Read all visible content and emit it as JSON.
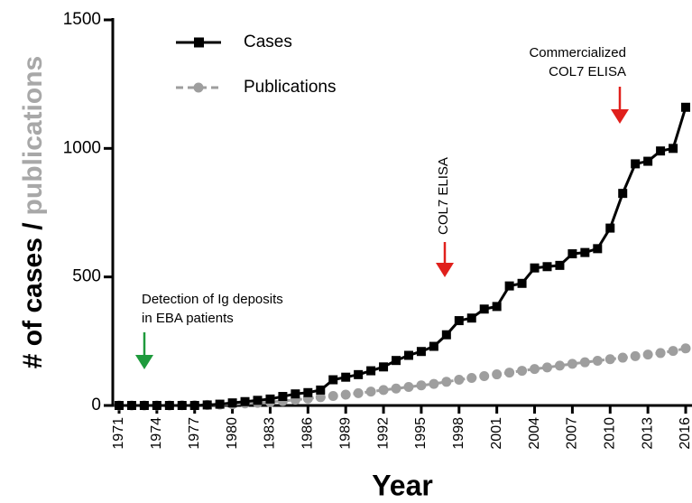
{
  "chart_data": {
    "type": "line",
    "x_label": "Year",
    "y_label": {
      "cases": "# of cases /",
      "publications": "publications"
    },
    "x": [
      1971,
      1972,
      1973,
      1974,
      1975,
      1976,
      1977,
      1978,
      1979,
      1980,
      1981,
      1982,
      1983,
      1984,
      1985,
      1986,
      1987,
      1988,
      1989,
      1990,
      1991,
      1992,
      1993,
      1994,
      1995,
      1996,
      1997,
      1998,
      1999,
      2000,
      2001,
      2002,
      2003,
      2004,
      2005,
      2006,
      2007,
      2008,
      2009,
      2010,
      2011,
      2012,
      2013,
      2014,
      2015,
      2016
    ],
    "series": [
      {
        "name": "Cases",
        "color": "#000000",
        "marker": "square",
        "values": [
          0,
          0,
          0,
          0,
          0,
          0,
          0,
          2,
          5,
          10,
          15,
          20,
          25,
          35,
          45,
          50,
          60,
          100,
          110,
          120,
          135,
          150,
          175,
          195,
          210,
          230,
          275,
          330,
          340,
          375,
          385,
          465,
          475,
          535,
          540,
          545,
          590,
          595,
          610,
          690,
          825,
          940,
          950,
          990,
          1000,
          1160
        ]
      },
      {
        "name": "Publications",
        "color": "#9e9e9e",
        "marker": "circle",
        "dashed": true,
        "values": [
          0,
          0,
          0,
          0,
          0,
          1,
          1,
          2,
          3,
          5,
          8,
          10,
          13,
          17,
          22,
          27,
          32,
          37,
          42,
          48,
          54,
          60,
          66,
          72,
          78,
          84,
          92,
          100,
          107,
          114,
          121,
          128,
          135,
          142,
          148,
          155,
          162,
          168,
          174,
          180,
          186,
          192,
          198,
          204,
          212,
          222
        ]
      }
    ],
    "xlim": [
      1971,
      2016
    ],
    "xticks": [
      1971,
      1974,
      1977,
      1980,
      1983,
      1986,
      1989,
      1992,
      1995,
      1998,
      2001,
      2004,
      2007,
      2010,
      2013,
      2016
    ],
    "ylim": [
      0,
      1500
    ],
    "yticks": [
      0,
      500,
      1000,
      1500
    ],
    "legend": "top-left",
    "annotations": [
      {
        "text": [
          "Detection of Ig deposits",
          "in EBA patients"
        ],
        "color": "#1e9a3c"
      },
      {
        "text": [
          "COL7 ELISA"
        ],
        "color": "#e0201c"
      },
      {
        "text": [
          "Commercialized",
          "COL7 ELISA"
        ],
        "color": "#e0201c"
      }
    ]
  }
}
